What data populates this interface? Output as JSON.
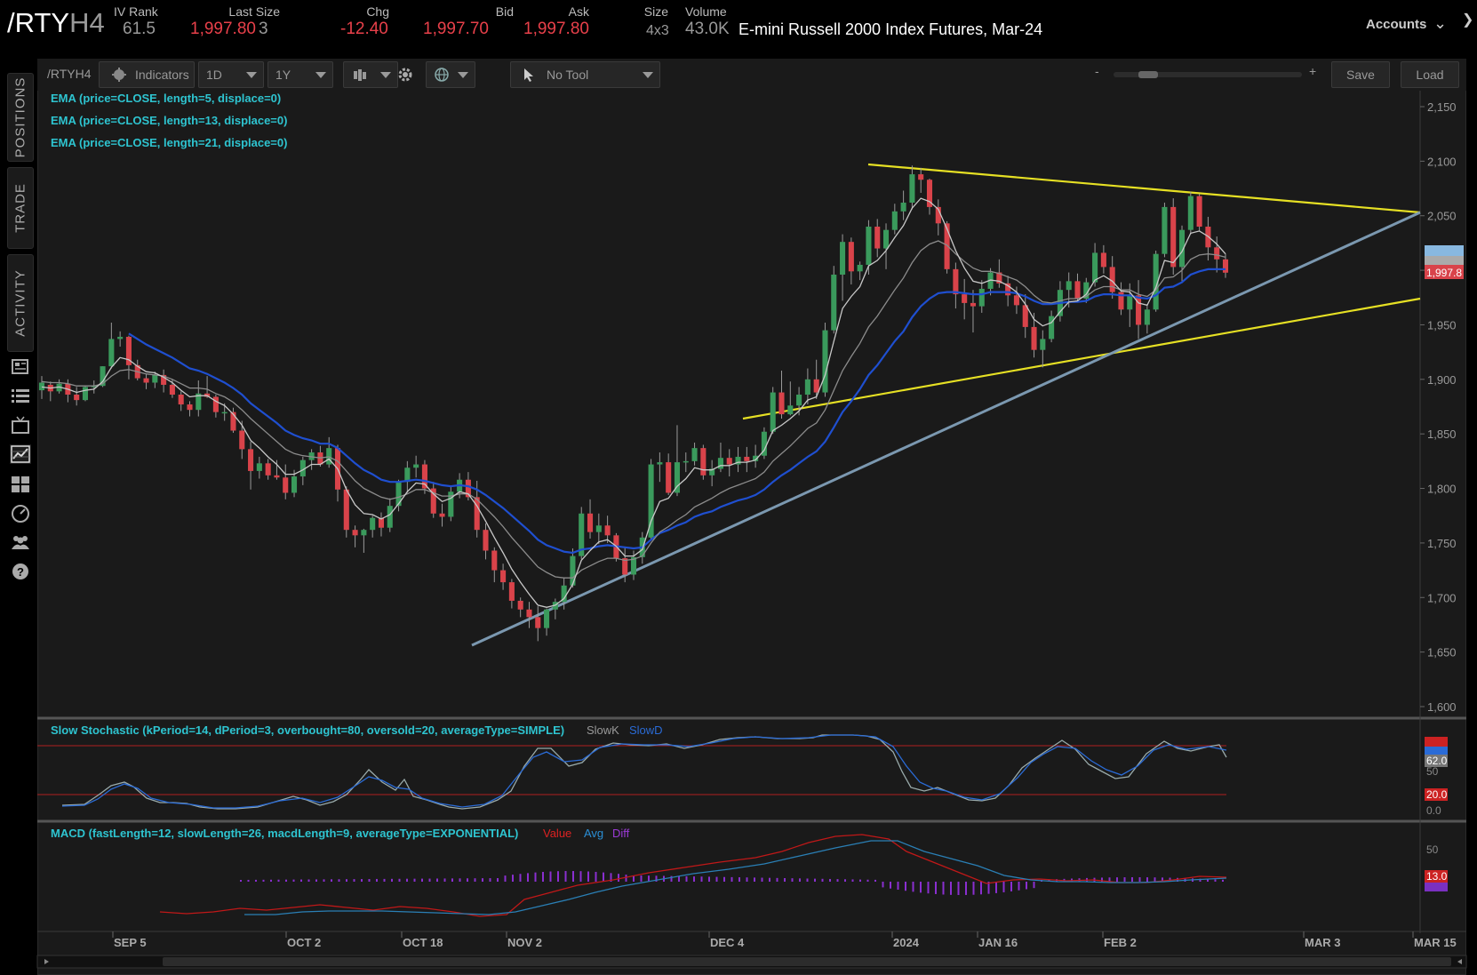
{
  "header": {
    "symbol_main": "/RTY",
    "symbol_suffix": "H4",
    "iv_rank_label": "IV Rank",
    "iv_rank_value": "61.5",
    "last_size_label": "Last Size",
    "last_value": "1,997.80",
    "last_size_value": "3",
    "chg_label": "Chg",
    "chg_value": "-12.40",
    "bid_label": "Bid",
    "bid_value": "1,997.70",
    "ask_label": "Ask",
    "ask_value": "1,997.80",
    "size_label": "Size",
    "size_value": "4x3",
    "volume_label": "Volume",
    "volume_value": "43.0K",
    "description": "E-mini Russell 2000 Index Futures, Mar-24",
    "accounts_label": "Accounts"
  },
  "nav": {
    "positions": "POSITIONS",
    "trade": "TRADE",
    "activity": "ACTIVITY"
  },
  "toolbar": {
    "symbol": "/RTYH4",
    "indicators": "Indicators",
    "aggregation": "1D",
    "period": "1Y",
    "tool": "No Tool",
    "zoom_minus": "-",
    "zoom_plus": "+",
    "save": "Save",
    "load": "Load"
  },
  "studies": {
    "ema5": "EMA (price=CLOSE, length=5, displace=0)",
    "ema13": "EMA (price=CLOSE, length=13, displace=0)",
    "ema21": "EMA (price=CLOSE, length=21, displace=0)",
    "stoch": "Slow Stochastic (kPeriod=14, dPeriod=3, overbought=80, oversold=20, averageType=SIMPLE)",
    "stoch_k": "SlowK",
    "stoch_d": "SlowD",
    "macd": "MACD (fastLength=12, slowLength=26, macdLength=9, averageType=EXPONENTIAL)",
    "macd_value": "Value",
    "macd_avg": "Avg",
    "macd_diff": "Diff"
  },
  "price_axis": {
    "ticks": [
      "2,150",
      "2,100",
      "2,050",
      "2,000",
      "1,950",
      "1,900",
      "1,850",
      "1,800",
      "1,750",
      "1,700",
      "1,650",
      "1,600"
    ],
    "last_badge": "1,997.8"
  },
  "stoch_axis": {
    "ticks": [
      "50",
      "0.0"
    ],
    "badges": [
      "62.0",
      "20.0"
    ]
  },
  "macd_axis": {
    "ticks": [
      "50"
    ],
    "badges": [
      "13.0"
    ]
  },
  "time_axis": {
    "labels": [
      "SEP 5",
      "OCT 2",
      "OCT 18",
      "NOV 2",
      "DEC 4",
      "2024",
      "JAN 16",
      "FEB 2",
      "MAR 3",
      "MAR 15"
    ]
  },
  "colors": {
    "up": "#3a9a5c",
    "down": "#d9434a",
    "ema_fast": "#c8c8c8",
    "ema_mid": "#8c8c8c",
    "ema_slow": "#1f4fd0",
    "trend_yellow": "#e6e024",
    "trend_blue": "#7b98b0",
    "study_label": "#2ec4d0"
  },
  "chart_data": {
    "type": "candlestick",
    "symbol": "/RTYH4",
    "ylim": [
      1590,
      2160
    ],
    "ohlc": [
      [
        1890,
        1903,
        1882,
        1897
      ],
      [
        1895,
        1898,
        1880,
        1889
      ],
      [
        1889,
        1900,
        1887,
        1896
      ],
      [
        1896,
        1900,
        1879,
        1886
      ],
      [
        1886,
        1893,
        1876,
        1881
      ],
      [
        1881,
        1894,
        1880,
        1893
      ],
      [
        1893,
        1899,
        1887,
        1894
      ],
      [
        1894,
        1912,
        1893,
        1912
      ],
      [
        1912,
        1952,
        1910,
        1937
      ],
      [
        1937,
        1944,
        1930,
        1939
      ],
      [
        1939,
        1940,
        1900,
        1913
      ],
      [
        1913,
        1918,
        1899,
        1901
      ],
      [
        1901,
        1905,
        1891,
        1897
      ],
      [
        1897,
        1907,
        1892,
        1904
      ],
      [
        1904,
        1909,
        1888,
        1895
      ],
      [
        1895,
        1900,
        1883,
        1886
      ],
      [
        1886,
        1889,
        1871,
        1877
      ],
      [
        1877,
        1880,
        1866,
        1872
      ],
      [
        1872,
        1899,
        1866,
        1887
      ],
      [
        1887,
        1903,
        1883,
        1884
      ],
      [
        1884,
        1886,
        1865,
        1870
      ],
      [
        1870,
        1878,
        1862,
        1870
      ],
      [
        1870,
        1874,
        1851,
        1853
      ],
      [
        1853,
        1862,
        1827,
        1836
      ],
      [
        1836,
        1843,
        1799,
        1816
      ],
      [
        1816,
        1829,
        1809,
        1823
      ],
      [
        1823,
        1827,
        1808,
        1812
      ],
      [
        1812,
        1826,
        1808,
        1810
      ],
      [
        1810,
        1822,
        1790,
        1796
      ],
      [
        1796,
        1817,
        1792,
        1811
      ],
      [
        1811,
        1829,
        1803,
        1826
      ],
      [
        1826,
        1836,
        1817,
        1833
      ],
      [
        1833,
        1839,
        1820,
        1822
      ],
      [
        1822,
        1847,
        1819,
        1837
      ],
      [
        1837,
        1840,
        1788,
        1799
      ],
      [
        1799,
        1802,
        1755,
        1762
      ],
      [
        1762,
        1766,
        1746,
        1757
      ],
      [
        1757,
        1763,
        1741,
        1762
      ],
      [
        1762,
        1775,
        1755,
        1773
      ],
      [
        1773,
        1778,
        1756,
        1764
      ],
      [
        1764,
        1791,
        1760,
        1784
      ],
      [
        1784,
        1808,
        1779,
        1806
      ],
      [
        1806,
        1825,
        1796,
        1819
      ],
      [
        1819,
        1830,
        1810,
        1822
      ],
      [
        1822,
        1826,
        1795,
        1800
      ],
      [
        1800,
        1806,
        1773,
        1777
      ],
      [
        1777,
        1786,
        1765,
        1774
      ],
      [
        1774,
        1802,
        1770,
        1797
      ],
      [
        1797,
        1814,
        1791,
        1808
      ],
      [
        1808,
        1815,
        1789,
        1792
      ],
      [
        1792,
        1807,
        1755,
        1762
      ],
      [
        1762,
        1768,
        1735,
        1743
      ],
      [
        1743,
        1746,
        1714,
        1725
      ],
      [
        1725,
        1731,
        1707,
        1714
      ],
      [
        1714,
        1717,
        1690,
        1697
      ],
      [
        1697,
        1700,
        1682,
        1689
      ],
      [
        1689,
        1696,
        1672,
        1682
      ],
      [
        1682,
        1692,
        1660,
        1672
      ],
      [
        1672,
        1690,
        1665,
        1689
      ],
      [
        1689,
        1699,
        1680,
        1696
      ],
      [
        1696,
        1718,
        1689,
        1711
      ],
      [
        1711,
        1745,
        1709,
        1738
      ],
      [
        1738,
        1783,
        1735,
        1777
      ],
      [
        1777,
        1790,
        1754,
        1760
      ],
      [
        1760,
        1777,
        1749,
        1766
      ],
      [
        1766,
        1775,
        1750,
        1757
      ],
      [
        1757,
        1759,
        1733,
        1736
      ],
      [
        1736,
        1746,
        1714,
        1721
      ],
      [
        1721,
        1743,
        1716,
        1737
      ],
      [
        1737,
        1760,
        1731,
        1755
      ],
      [
        1755,
        1827,
        1752,
        1822
      ],
      [
        1822,
        1833,
        1806,
        1824
      ],
      [
        1824,
        1832,
        1794,
        1796
      ],
      [
        1796,
        1858,
        1793,
        1824
      ],
      [
        1824,
        1833,
        1815,
        1825
      ],
      [
        1825,
        1842,
        1821,
        1837
      ],
      [
        1837,
        1840,
        1808,
        1812
      ],
      [
        1812,
        1826,
        1802,
        1818
      ],
      [
        1818,
        1842,
        1815,
        1828
      ],
      [
        1828,
        1836,
        1811,
        1822
      ],
      [
        1822,
        1838,
        1815,
        1829
      ],
      [
        1829,
        1838,
        1815,
        1825
      ],
      [
        1825,
        1840,
        1819,
        1830
      ],
      [
        1830,
        1856,
        1827,
        1852
      ],
      [
        1852,
        1893,
        1850,
        1888
      ],
      [
        1888,
        1908,
        1864,
        1868
      ],
      [
        1868,
        1898,
        1867,
        1876
      ],
      [
        1876,
        1893,
        1867,
        1886
      ],
      [
        1886,
        1910,
        1877,
        1900
      ],
      [
        1900,
        1918,
        1882,
        1888
      ],
      [
        1888,
        1952,
        1884,
        1945
      ],
      [
        1945,
        2004,
        1942,
        1996
      ],
      [
        1996,
        2033,
        1972,
        2026
      ],
      [
        2026,
        2030,
        1987,
        1999
      ],
      [
        1999,
        2008,
        1991,
        2005
      ],
      [
        2005,
        2046,
        1996,
        2040
      ],
      [
        2040,
        2047,
        2012,
        2020
      ],
      [
        2020,
        2043,
        2001,
        2037
      ],
      [
        2037,
        2061,
        2033,
        2054
      ],
      [
        2054,
        2073,
        2046,
        2062
      ],
      [
        2062,
        2096,
        2056,
        2088
      ],
      [
        2088,
        2094,
        2071,
        2083
      ],
      [
        2083,
        2084,
        2051,
        2058
      ],
      [
        2058,
        2065,
        2032,
        2043
      ],
      [
        2043,
        2045,
        1997,
        2001
      ],
      [
        2001,
        2007,
        1965,
        1978
      ],
      [
        1978,
        1992,
        1955,
        1970
      ],
      [
        1970,
        1982,
        1943,
        1967
      ],
      [
        1967,
        1991,
        1961,
        1983
      ],
      [
        1983,
        2002,
        1977,
        1998
      ],
      [
        1998,
        2010,
        1984,
        1988
      ],
      [
        1988,
        1995,
        1967,
        1977
      ],
      [
        1977,
        1985,
        1960,
        1968
      ],
      [
        1968,
        1978,
        1938,
        1948
      ],
      [
        1948,
        1961,
        1920,
        1927
      ],
      [
        1927,
        1945,
        1911,
        1937
      ],
      [
        1937,
        1963,
        1934,
        1958
      ],
      [
        1958,
        1990,
        1953,
        1982
      ],
      [
        1982,
        1998,
        1966,
        1990
      ],
      [
        1990,
        1997,
        1971,
        1974
      ],
      [
        1974,
        1993,
        1970,
        1989
      ],
      [
        1989,
        2025,
        1985,
        2016
      ],
      [
        2016,
        2023,
        1997,
        2003
      ],
      [
        2003,
        2013,
        1974,
        1980
      ],
      [
        1980,
        1989,
        1959,
        1964
      ],
      [
        1964,
        1988,
        1948,
        1977
      ],
      [
        1977,
        1991,
        1937,
        1950
      ],
      [
        1950,
        1969,
        1942,
        1964
      ],
      [
        1964,
        2018,
        1962,
        2015
      ],
      [
        2015,
        2062,
        2012,
        2058
      ],
      [
        2058,
        2066,
        1996,
        2003
      ],
      [
        2003,
        2041,
        1990,
        2037
      ],
      [
        2037,
        2072,
        2033,
        2068
      ],
      [
        2068,
        2070,
        2036,
        2040
      ],
      [
        2040,
        2049,
        2009,
        2021
      ],
      [
        2021,
        2031,
        1998,
        2010
      ],
      [
        2010,
        2015,
        1993,
        1997.8
      ]
    ],
    "ema5": [
      1893,
      1892,
      1893,
      1891,
      1888,
      1890,
      1891,
      1898,
      1911,
      1920,
      1918,
      1912,
      1907,
      1906,
      1902,
      1897,
      1890,
      1884,
      1885,
      1885,
      1880,
      1876,
      1868,
      1858,
      1844,
      1837,
      1829,
      1822,
      1813,
      1813,
      1817,
      1822,
      1822,
      1827,
      1818,
      1799,
      1785,
      1777,
      1776,
      1772,
      1776,
      1786,
      1797,
      1805,
      1804,
      1795,
      1788,
      1791,
      1797,
      1795,
      1784,
      1770,
      1755,
      1741,
      1726,
      1714,
      1703,
      1693,
      1691,
      1693,
      1699,
      1712,
      1734,
      1743,
      1751,
      1753,
      1747,
      1738,
      1738,
      1744,
      1770,
      1788,
      1791,
      1802,
      1809,
      1819,
      1817,
      1817,
      1821,
      1821,
      1824,
      1824,
      1826,
      1835,
      1853,
      1858,
      1864,
      1871,
      1881,
      1884,
      1904,
      1935,
      1965,
      1976,
      1985,
      2004,
      2009,
      2018,
      2030,
      2041,
      2057,
      2066,
      2063,
      2056,
      2038,
      2018,
      2002,
      1990,
      1988,
      1991,
      1990,
      1986,
      1980,
      1969,
      1955,
      1949,
      1952,
      1962,
      1971,
      1972,
      1978,
      1991,
      1995,
      1990,
      1981,
      1980,
      1970,
      1968,
      1984,
      2009,
      2007,
      2017,
      2034,
      2036,
      2031,
      2024,
      2015
    ],
    "ema13": [
      1898,
      1897,
      1897,
      1896,
      1894,
      1894,
      1894,
      1896,
      1903,
      1908,
      1909,
      1907,
      1905,
      1904,
      1903,
      1900,
      1896,
      1892,
      1892,
      1891,
      1887,
      1884,
      1879,
      1872,
      1864,
      1857,
      1850,
      1843,
      1836,
      1832,
      1830,
      1829,
      1828,
      1829,
      1825,
      1816,
      1807,
      1800,
      1796,
      1792,
      1790,
      1792,
      1795,
      1799,
      1799,
      1796,
      1793,
      1793,
      1795,
      1795,
      1790,
      1782,
      1774,
      1765,
      1755,
      1746,
      1737,
      1728,
      1723,
      1719,
      1718,
      1718,
      1725,
      1729,
      1733,
      1736,
      1736,
      1734,
      1735,
      1738,
      1750,
      1760,
      1765,
      1771,
      1776,
      1783,
      1787,
      1791,
      1796,
      1800,
      1803,
      1806,
      1809,
      1815,
      1825,
      1832,
      1839,
      1847,
      1855,
      1860,
      1872,
      1890,
      1908,
      1921,
      1933,
      1948,
      1958,
      1970,
      1982,
      1993,
      2007,
      2018,
      2024,
      2027,
      2023,
      2015,
      2008,
      2002,
      1999,
      1999,
      1997,
      1994,
      1991,
      1985,
      1977,
      1971,
      1970,
      1972,
      1974,
      1974,
      1976,
      1982,
      1985,
      1985,
      1982,
      1982,
      1978,
      1976,
      1982,
      1993,
      1994,
      2000,
      2010,
      2014,
      2015,
      2014,
      2012
    ],
    "ema21": [
      null,
      null,
      null,
      null,
      null,
      null,
      null,
      null,
      null,
      null,
      1942,
      1937,
      1932,
      1928,
      1924,
      1920,
      1915,
      1910,
      1908,
      1905,
      1901,
      1897,
      1892,
      1886,
      1878,
      1872,
      1866,
      1860,
      1853,
      1849,
      1846,
      1844,
      1841,
      1841,
      1837,
      1830,
      1823,
      1817,
      1813,
      1808,
      1806,
      1806,
      1807,
      1808,
      1807,
      1805,
      1803,
      1802,
      1803,
      1802,
      1799,
      1794,
      1788,
      1782,
      1775,
      1768,
      1761,
      1753,
      1748,
      1745,
      1742,
      1741,
      1744,
      1745,
      1747,
      1748,
      1747,
      1746,
      1745,
      1746,
      1753,
      1759,
      1762,
      1766,
      1769,
      1774,
      1777,
      1779,
      1783,
      1786,
      1789,
      1791,
      1794,
      1799,
      1806,
      1812,
      1817,
      1823,
      1829,
      1834,
      1843,
      1856,
      1870,
      1880,
      1891,
      1904,
      1913,
      1924,
      1935,
      1944,
      1957,
      1967,
      1974,
      1979,
      1980,
      1980,
      1979,
      1978,
      1978,
      1980,
      1980,
      1980,
      1979,
      1976,
      1972,
      1969,
      1969,
      1970,
      1971,
      1971,
      1972,
      1976,
      1978,
      1978,
      1977,
      1977,
      1975,
      1974,
      1977,
      1984,
      1985,
      1989,
      1996,
      1999,
      2001,
      2001,
      2001
    ]
  }
}
